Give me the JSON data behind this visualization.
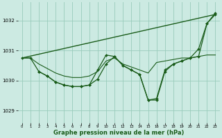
{
  "background_color": "#cceae2",
  "grid_color": "#99ccbb",
  "line_color": "#1a5c1a",
  "xlabel": "Graphe pression niveau de la mer (hPa)",
  "xlabel_fontsize": 6.0,
  "xlabel_bold": true,
  "yticks": [
    1029,
    1030,
    1031,
    1032
  ],
  "xticks": [
    0,
    1,
    2,
    3,
    4,
    5,
    6,
    7,
    8,
    9,
    10,
    11,
    12,
    13,
    14,
    15,
    16,
    17,
    18,
    19,
    20,
    21,
    22,
    23
  ],
  "xlim": [
    -0.5,
    23.5
  ],
  "ylim": [
    1028.6,
    1032.6
  ],
  "series": [
    {
      "x": [
        0,
        23
      ],
      "y": [
        1030.75,
        1032.2
      ],
      "style": "line_only",
      "lw": 1.0
    },
    {
      "x": [
        0,
        1,
        2,
        3,
        4,
        5,
        6,
        7,
        8,
        9,
        10,
        11,
        12,
        13,
        14,
        15,
        16,
        17,
        18,
        19,
        20,
        21,
        22,
        23
      ],
      "y": [
        1030.75,
        1030.75,
        1030.55,
        1030.4,
        1030.25,
        1030.15,
        1030.1,
        1030.1,
        1030.15,
        1030.3,
        1030.65,
        1030.75,
        1030.55,
        1030.45,
        1030.35,
        1030.25,
        1030.6,
        1030.65,
        1030.7,
        1030.75,
        1030.75,
        1030.8,
        1030.85,
        1030.85
      ],
      "style": "line_only",
      "lw": 0.8
    },
    {
      "x": [
        0,
        1,
        2,
        3,
        4,
        5,
        6,
        7,
        8,
        9,
        10,
        11,
        12,
        13,
        14,
        15,
        16,
        17,
        18,
        19,
        20,
        21,
        22,
        23
      ],
      "y": [
        1030.75,
        1030.75,
        1030.3,
        1030.15,
        1029.95,
        1029.85,
        1029.8,
        1029.8,
        1029.85,
        1030.35,
        1030.85,
        1030.8,
        1030.5,
        1030.35,
        1030.2,
        1029.35,
        1029.35,
        1030.3,
        1030.55,
        1030.65,
        1030.75,
        1031.05,
        1031.9,
        1032.25
      ],
      "style": "line_markers",
      "lw": 0.9
    },
    {
      "x": [
        2,
        3,
        4,
        5,
        6,
        7,
        8,
        9,
        10,
        11,
        12,
        13,
        14,
        15,
        16,
        17,
        18,
        19,
        20,
        21,
        22,
        23
      ],
      "y": [
        1030.3,
        1030.15,
        1029.95,
        1029.85,
        1029.8,
        1029.8,
        1029.85,
        1030.05,
        1030.55,
        1030.8,
        1030.5,
        1030.35,
        1030.2,
        1029.35,
        1029.4,
        1030.35,
        1030.55,
        1030.65,
        1030.75,
        1030.8,
        1031.9,
        1032.2
      ],
      "style": "line_markers",
      "lw": 0.9
    }
  ]
}
